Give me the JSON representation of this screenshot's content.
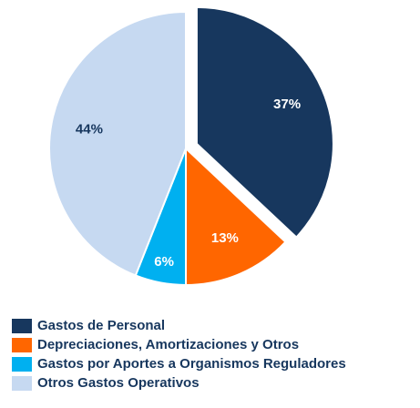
{
  "chart_data": {
    "type": "pie",
    "categories": [
      "Gastos de Personal",
      "Depreciaciones, Amortizaciones y Otros",
      "Gastos por Aportes a Organismos Reguladores",
      "Otros Gastos Operativos"
    ],
    "values": [
      37,
      13,
      6,
      44
    ],
    "value_labels": [
      "37%",
      "13%",
      "6%",
      "44%"
    ],
    "colors": [
      "#17375e",
      "#ff6600",
      "#00b0f0",
      "#c6d9f1"
    ],
    "explode": [
      true,
      false,
      false,
      false
    ],
    "legend": "bottom-left"
  }
}
